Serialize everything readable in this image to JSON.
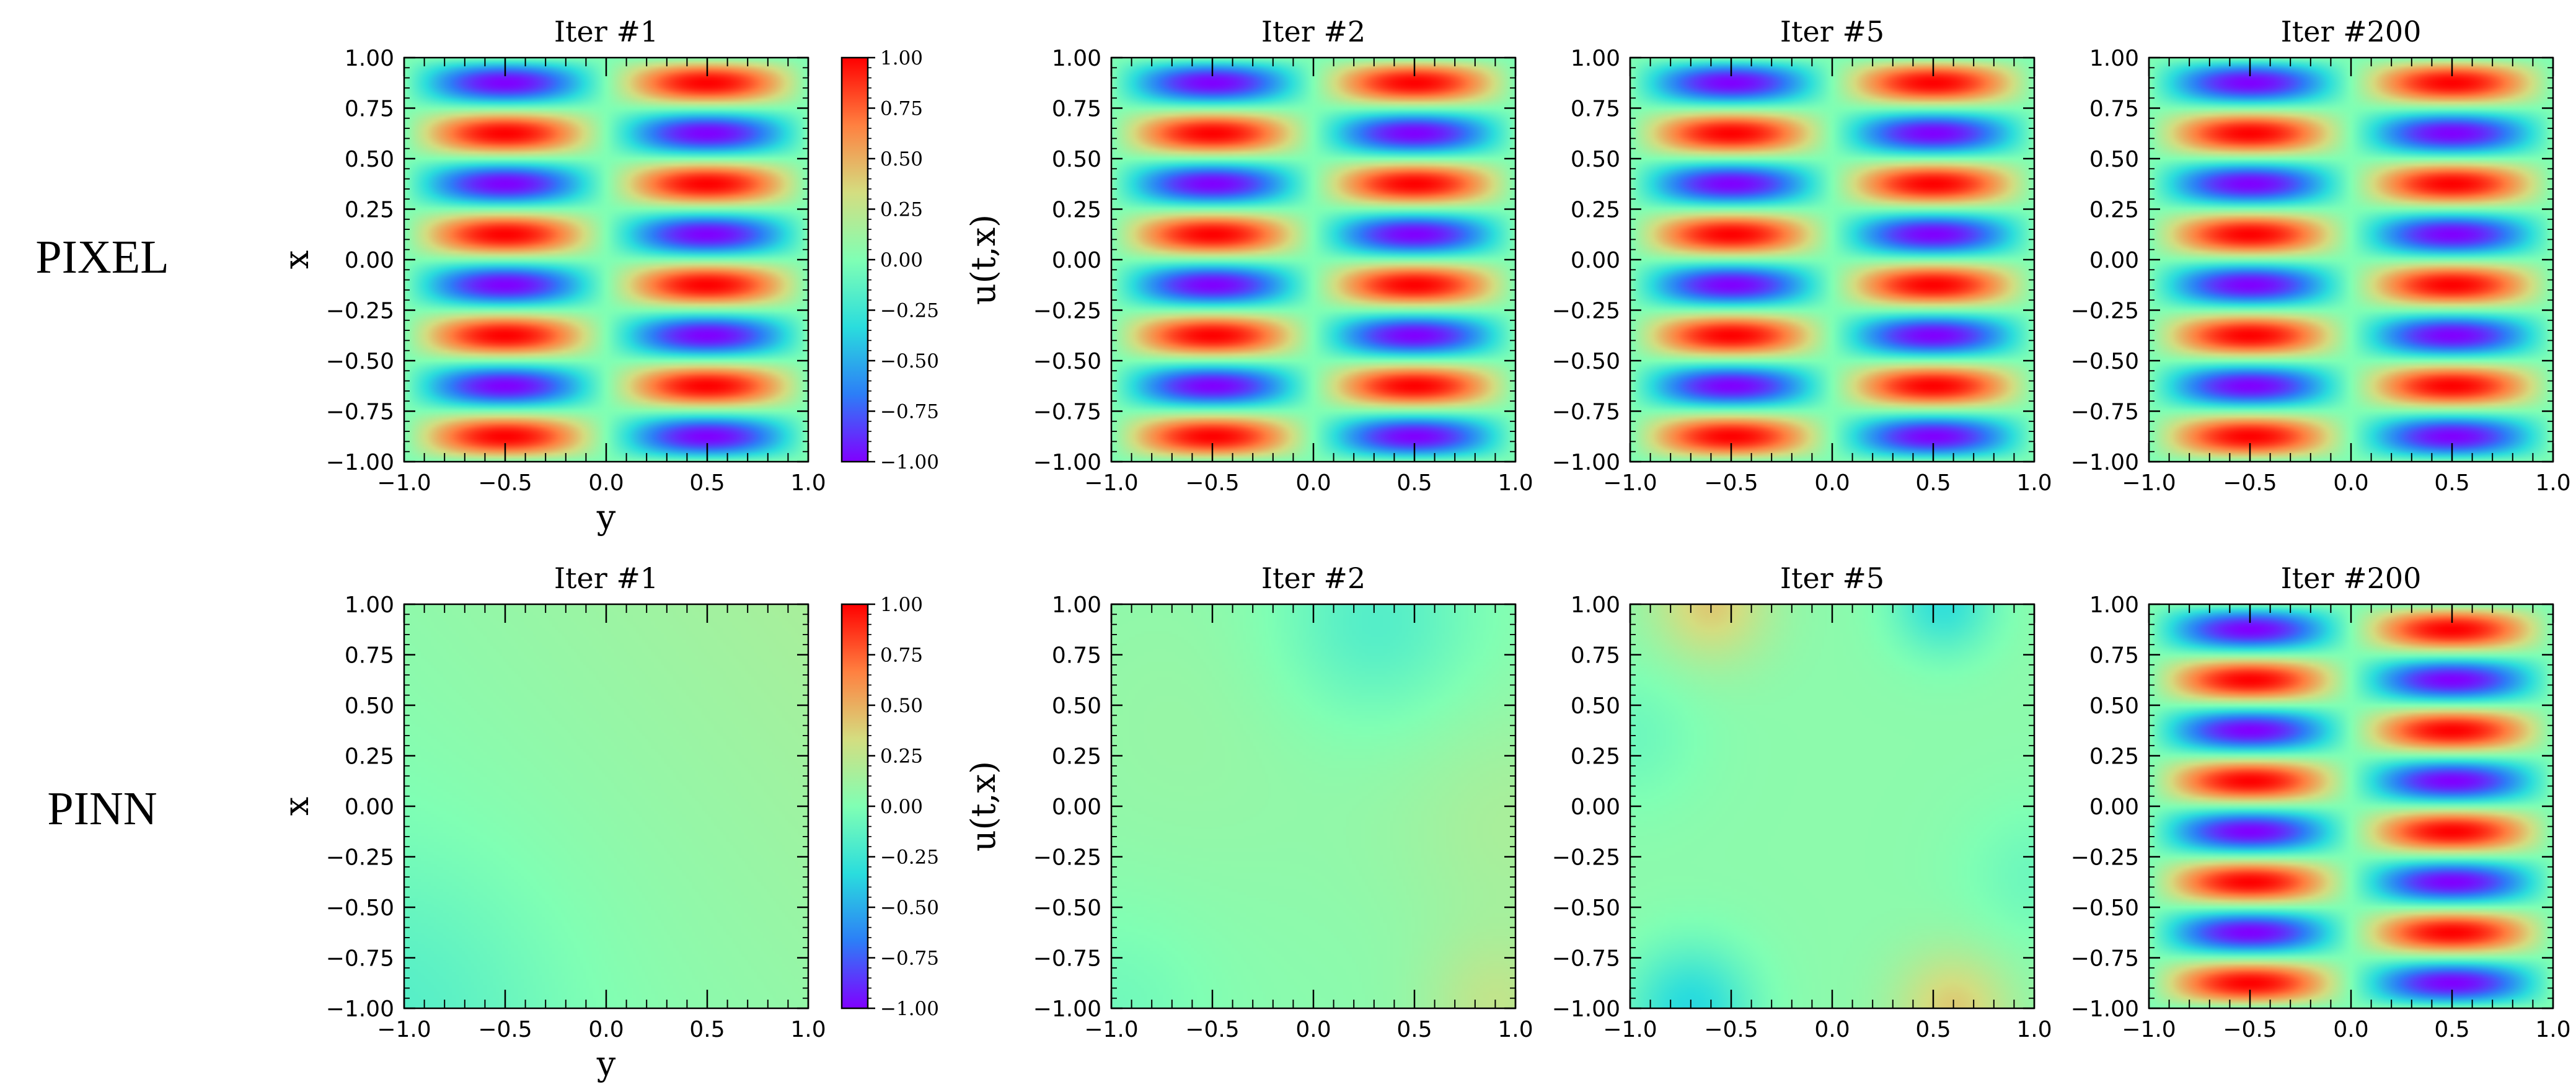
{
  "chart_data": {
    "type": "heatmap",
    "rows": [
      {
        "label": "PIXEL",
        "panels": [
          {
            "title": "Iter #1",
            "field": "ground_truth"
          },
          {
            "title": "Iter #2",
            "field": "ground_truth"
          },
          {
            "title": "Iter #5",
            "field": "ground_truth"
          },
          {
            "title": "Iter #200",
            "field": "ground_truth"
          }
        ]
      },
      {
        "label": "PINN",
        "panels": [
          {
            "title": "Iter #1",
            "field": "pinn_iter1"
          },
          {
            "title": "Iter #2",
            "field": "pinn_iter2"
          },
          {
            "title": "Iter #5",
            "field": "pinn_iter5"
          },
          {
            "title": "Iter #200",
            "field": "ground_truth"
          }
        ]
      }
    ],
    "ground_truth": {
      "description": "u = -sin(pi*y) * sin(4*pi*x)",
      "y_freq": 1,
      "x_freq": 4
    },
    "xlabel": "y",
    "ylabel": "x",
    "colorbar_label": "u(t,x)",
    "xlim": [
      -1.0,
      1.0
    ],
    "ylim": [
      -1.0,
      1.0
    ],
    "clim": [
      -1.0,
      1.0
    ],
    "xticks": [
      "−1.0",
      "−0.5",
      "0.0",
      "0.5",
      "1.0"
    ],
    "yticks": [
      "1.00",
      "0.75",
      "0.50",
      "0.25",
      "0.00",
      "−0.25",
      "−0.50",
      "−0.75",
      "−1.00"
    ],
    "colorbar_ticks": [
      "1.00",
      "0.75",
      "0.50",
      "0.25",
      "0.00",
      "−0.25",
      "−0.50",
      "−0.75",
      "−1.00"
    ],
    "colormap": "rainbow",
    "colormap_stops": [
      "#8000ff",
      "#2c7ef7",
      "#2adddd",
      "#80ffb4",
      "#d4dd80",
      "#ff8040",
      "#ff0000"
    ]
  }
}
